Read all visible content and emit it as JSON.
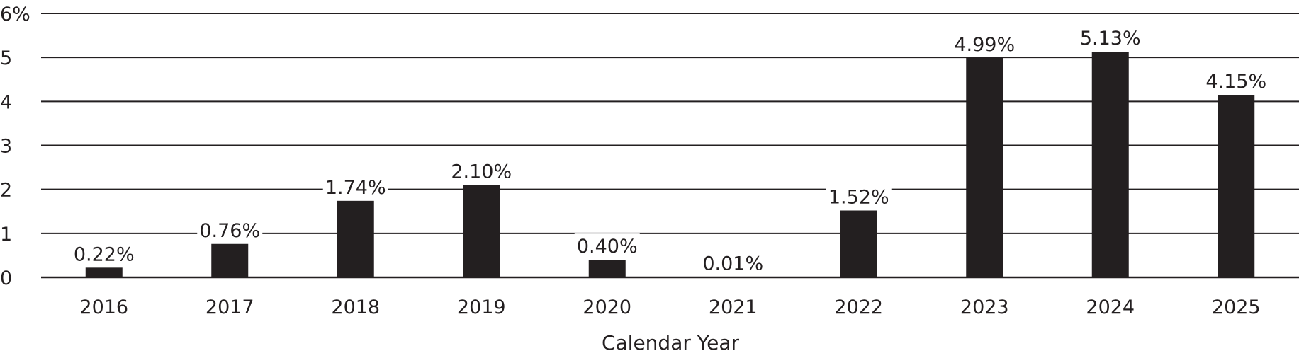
{
  "chart_data": {
    "type": "bar",
    "categories": [
      "2016",
      "2017",
      "2018",
      "2019",
      "2020",
      "2021",
      "2022",
      "2023",
      "2024",
      "2025"
    ],
    "values": [
      0.22,
      0.76,
      1.74,
      2.1,
      0.4,
      0.01,
      1.52,
      4.99,
      5.13,
      4.15
    ],
    "data_labels": [
      "0.22%",
      "0.76%",
      "1.74%",
      "2.10%",
      "0.40%",
      "0.01%",
      "1.52%",
      "4.99%",
      "5.13%",
      "4.15%"
    ],
    "yticks": [
      0,
      1,
      2,
      3,
      4,
      5,
      6
    ],
    "ytick_labels": [
      "0",
      "1",
      "2",
      "3",
      "4",
      "5",
      "6%"
    ],
    "ylim": [
      0,
      6
    ],
    "xlabel": "Calendar Year",
    "ylabel": "",
    "title": "",
    "grid": true,
    "bar_color": "#231f20",
    "grid_color": "#231f20"
  }
}
